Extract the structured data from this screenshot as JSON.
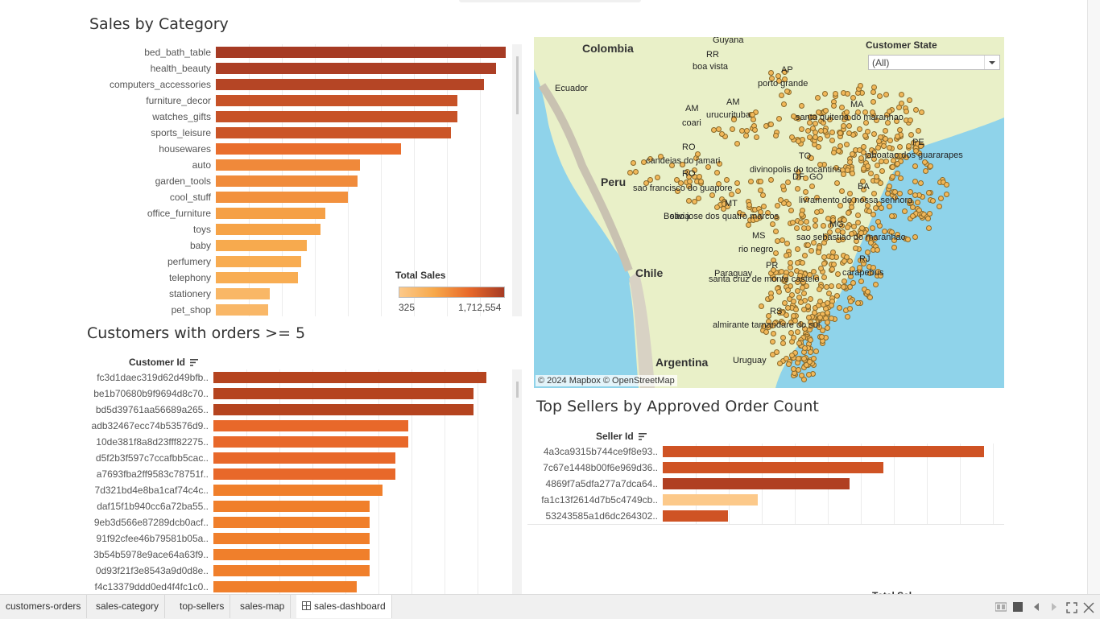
{
  "sales_category": {
    "title": "Sales by Category",
    "legend_title": "Total Sales",
    "legend_min": "325",
    "legend_max": "1,712,554"
  },
  "customers": {
    "title": "Customers with orders >= 5",
    "column_header": "Customer Id"
  },
  "map": {
    "filter_label": "Customer State",
    "filter_value": "(All)",
    "attribution": "© 2024 Mapbox © OpenStreetMap"
  },
  "top_sellers": {
    "title": "Top Sellers by Approved Order Count",
    "column_header": "Seller Id",
    "partial_label": "Total Sal"
  },
  "tabs": [
    "customers-orders",
    "sales-category",
    "top-sellers",
    "sales-map",
    "sales-dashboard"
  ],
  "active_tab": "sales-dashboard",
  "colors": {
    "dark": "#a63b24",
    "mid": "#e8692a",
    "light": "#f7a84a",
    "pale": "#fcc98a",
    "map_water": "#8fd3ea",
    "map_land": "#e9f0c8"
  },
  "chart_data": [
    {
      "type": "bar",
      "orientation": "horizontal",
      "title": "Sales by Category",
      "color_legend": "Total Sales",
      "categories": [
        "bed_bath_table",
        "health_beauty",
        "computers_accessories",
        "furniture_decor",
        "watches_gifts",
        "sports_leisure",
        "housewares",
        "auto",
        "garden_tools",
        "cool_stuff",
        "office_furniture",
        "toys",
        "baby",
        "perfumery",
        "telephony",
        "stationery",
        "pet_shop"
      ],
      "values": [
        1712554,
        1657373,
        1585330,
        1430176,
        1429217,
        1392128,
        1094758,
        852294,
        838281,
        779698,
        646826,
        619037,
        539845,
        506738,
        486882,
        317440,
        311268
      ],
      "color_range": [
        325,
        1712554
      ]
    },
    {
      "type": "bar",
      "orientation": "horizontal",
      "title": "Customers with orders >= 5",
      "categories": [
        "fc3d1daec319d62d49bfb..",
        "be1b70680b9f9694d8c70..",
        "bd5d39761aa56689a265..",
        "adb32467ecc74b53576d9..",
        "10de381f8a8d23fff82275..",
        "d5f2b3f597c7ccafbb5cac..",
        "a7693fba2ff9583c78751f..",
        "7d321bd4e8ba1caf74c4c..",
        "daf15f1b940cc6a72ba55..",
        "9eb3d566e87289dcb0acf..",
        "91f92cfee46b79581b05a..",
        "3b54b5978e9ace64a63f9..",
        "0d93f21f3e8543a9d0d8e..",
        "f4c13379ddd0ed4f4fc1c0.."
      ],
      "values": [
        21,
        20,
        20,
        15,
        15,
        14,
        14,
        13,
        12,
        12,
        12,
        12,
        12,
        11
      ]
    },
    {
      "type": "bar",
      "orientation": "horizontal",
      "title": "Top Sellers by Approved Order Count",
      "categories": [
        "4a3ca9315b744ce9f8e93..",
        "7c67e1448b00f6e969d36..",
        "4869f7a5dfa277a7dca64..",
        "fa1c13f2614d7b5c4749cb..",
        "53243585a1d6dc264302.."
      ],
      "values": [
        1987,
        1364,
        1156,
        585,
        404
      ],
      "fill_levels": [
        "mid",
        "mid",
        "dark",
        "pale",
        "mid"
      ]
    }
  ],
  "map_labels": {
    "countries": [
      "Colombia",
      "Peru",
      "Chile",
      "Argentina",
      "Paraguay",
      "Uruguay",
      "Ecuador",
      "Guyana",
      "Bolivia"
    ],
    "states": [
      "RR",
      "AP",
      "AM",
      "AM",
      "MA",
      "PE",
      "TO",
      "DF",
      "GO",
      "RO",
      "RO",
      "MT",
      "BA",
      "MG",
      "MS",
      "PR",
      "RJ",
      "RS"
    ],
    "cities": [
      "boa vista",
      "porto grande",
      "coari",
      "urucurituba",
      "santa quiteria do maranhao",
      "jaboatao dos guararapes",
      "candeias do jamari",
      "divinopolis do tocantins",
      "sao francisco do guapore",
      "livramento de nossa senhora",
      "sao jose dos quatro marcos",
      "sao sebastiao do maranhao",
      "rio negro",
      "carapebus",
      "santa cruz de monte castelo",
      "almirante tamandare do sul"
    ]
  }
}
